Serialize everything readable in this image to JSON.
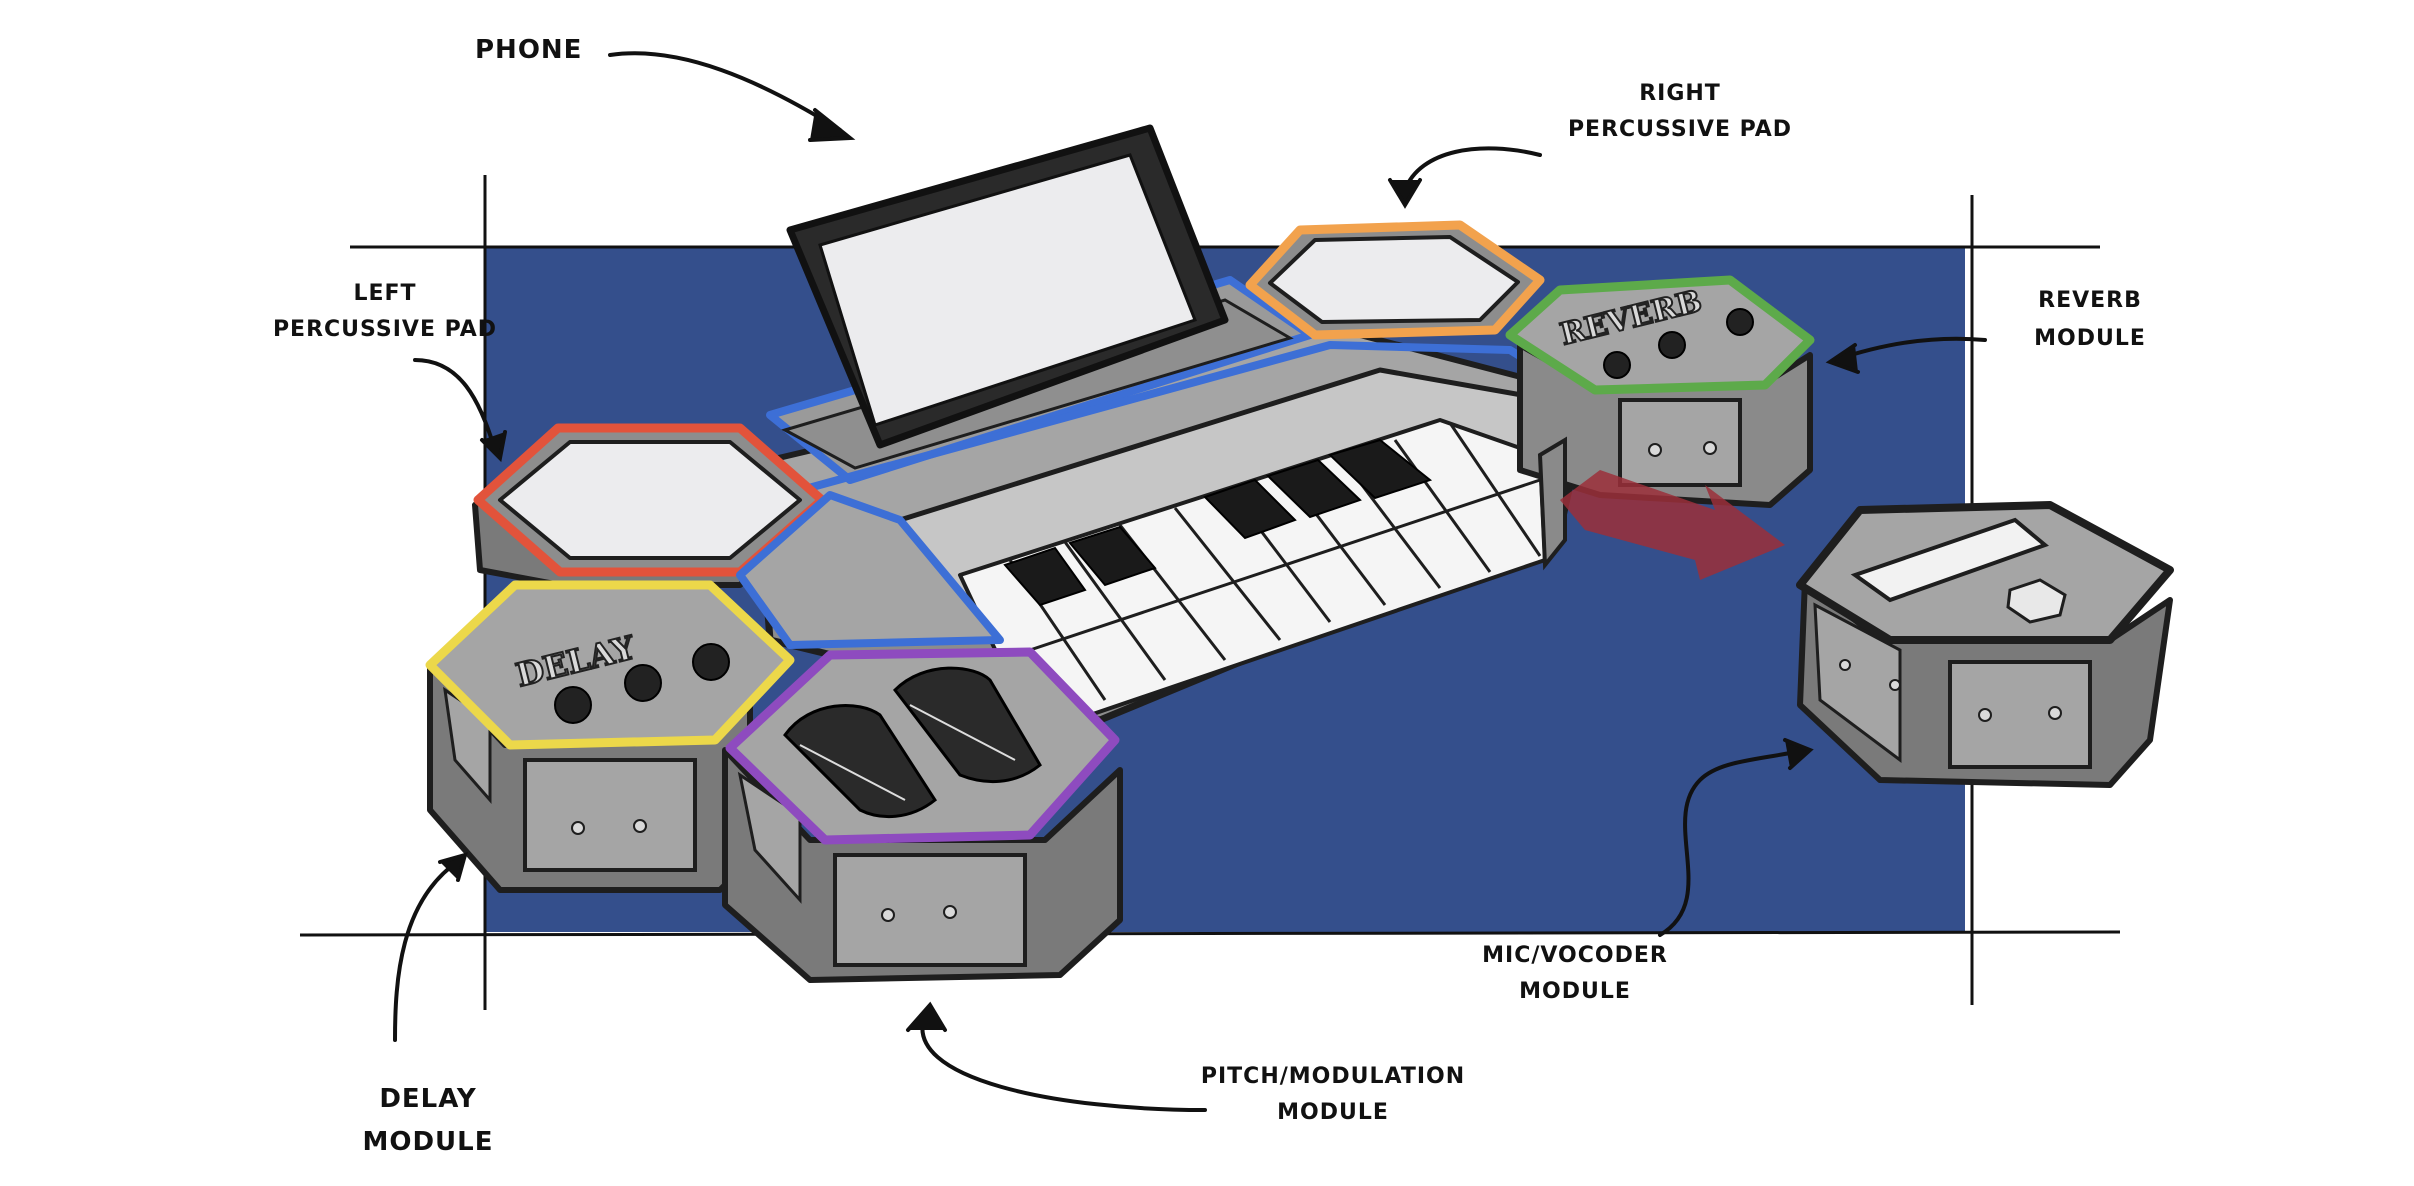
{
  "labels": {
    "phone": "PHONE",
    "right_pad_1": "RIGHT",
    "right_pad_2": "PERCUSSIVE PAD",
    "left_pad_1": "LEFT",
    "left_pad_2": "PERCUSSIVE PAD",
    "reverb_1": "REVERB",
    "reverb_2": "MODULE",
    "mic_1": "MIC/VOCODER",
    "mic_2": "MODULE",
    "pitch_1": "PITCH/MODULATION",
    "pitch_2": "MODULE",
    "delay_1": "DELAY",
    "delay_2": "MODULE"
  },
  "module_text": {
    "delay": "DELAY",
    "reverb": "REVERB"
  },
  "colors": {
    "background_panel": "#344f8c",
    "device_body": "#8c8c8c",
    "device_top": "#a5a5a5",
    "outline": "#1e1e1e",
    "left_pad_ring": "#e2533b",
    "right_pad_ring": "#f2a24d",
    "delay_ring": "#ecd84a",
    "pitch_ring": "#8e4bbf",
    "reverb_ring": "#5daa4a",
    "keyboard_ring": "#3d6fd6",
    "arrow": "#9b2f3a"
  }
}
